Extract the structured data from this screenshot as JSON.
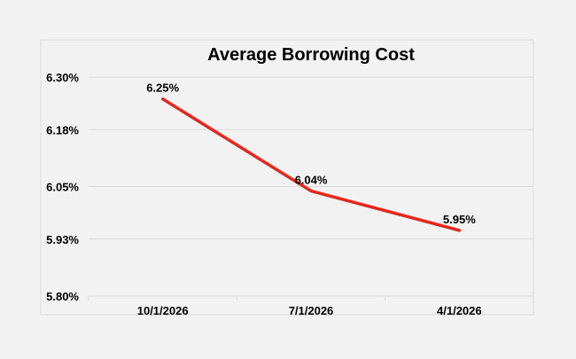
{
  "chart_data": {
    "type": "line",
    "title": "Average Borrowing Cost",
    "xlabel": "",
    "ylabel": "",
    "categories": [
      "10/1/2026",
      "7/1/2026",
      "4/1/2026"
    ],
    "series": [
      {
        "values": [
          6.25,
          6.04,
          5.95
        ],
        "data_labels": [
          "6.25%",
          "6.04%",
          "5.95%"
        ],
        "color": "#e8261b"
      }
    ],
    "ylim": [
      5.8,
      6.3
    ],
    "yticks": [
      5.8,
      5.93,
      6.05,
      6.18,
      6.3
    ],
    "ytick_labels": [
      "5.80%",
      "5.93%",
      "6.05%",
      "6.18%",
      "6.30%"
    ],
    "grid": true,
    "legend": "none"
  },
  "colors": {
    "background": "#f2f2f2",
    "plot_border": "#d9d9d9",
    "gridline": "#d9d9d9",
    "text": "#000000"
  }
}
